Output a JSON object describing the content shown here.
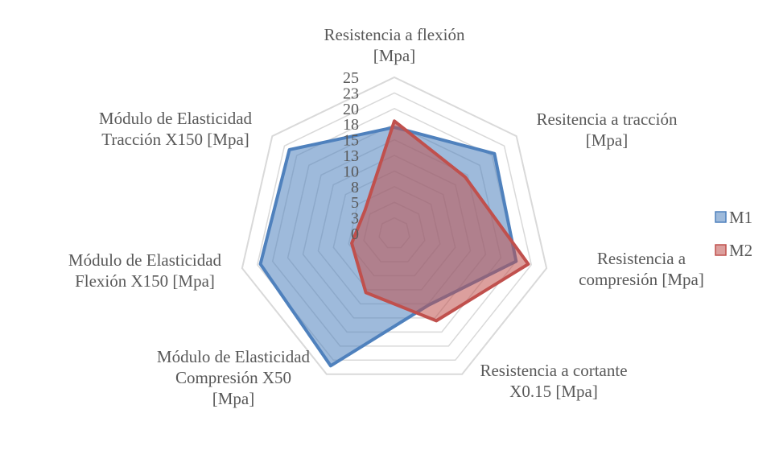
{
  "chart_data": {
    "type": "radar",
    "title": "",
    "categories": [
      [
        "Resistencia a flexión",
        "[Mpa]"
      ],
      [
        "Resitencia a tracción",
        "[Mpa]"
      ],
      [
        "Resistencia a",
        "compresión  [Mpa]"
      ],
      [
        "Resistencia a cortante",
        "X0.15 [Mpa]"
      ],
      [
        "Módulo de Elasticidad",
        "Compresión X50",
        "[Mpa]"
      ],
      [
        "Módulo de Elasticidad",
        "Flexión X150 [Mpa]"
      ],
      [
        "Módulo de Elasticidad",
        "Tracción X150 [Mpa]"
      ]
    ],
    "ticks": [
      "0",
      "3",
      "5",
      "8",
      "10",
      "13",
      "15",
      "18",
      "20",
      "23",
      "25"
    ],
    "rmax": 25,
    "series": [
      {
        "name": "M1",
        "values": [
          17.0,
          20.5,
          20.0,
          12.7,
          23.5,
          22.0,
          21.5
        ],
        "color": "#4f81bd",
        "fill": "rgba(79,129,189,0.55)"
      },
      {
        "name": "M2",
        "values": [
          18.0,
          14.5,
          22.0,
          15.5,
          10.5,
          7.0,
          6.0
        ],
        "color": "#c0504d",
        "fill": "rgba(192,80,77,0.55)"
      }
    ],
    "grid": true,
    "legend": "right"
  }
}
